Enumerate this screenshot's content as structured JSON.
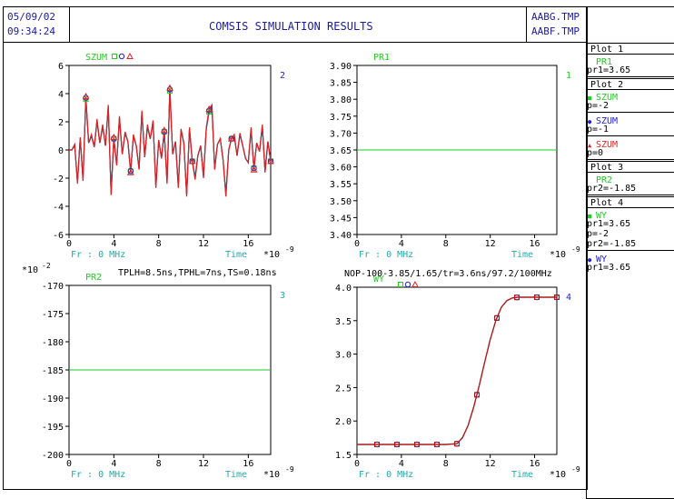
{
  "header": {
    "date": "05/09/02",
    "time": "09:34:24",
    "title": "COMSIS SIMULATION RESULTS",
    "file1": "AABG.TMP",
    "file2": "AABF.TMP"
  },
  "colors": {
    "green": "#22cc22",
    "blue": "#2222cc",
    "red": "#dd2222",
    "cyan": "#22aaaa",
    "maroon": "#aa1a1a",
    "frame": "#000000"
  },
  "legend_panel": [
    {
      "kind": "header",
      "text": "Plot  1"
    },
    {
      "kind": "name",
      "text": "PR1",
      "color": "#22cc22",
      "marker": ""
    },
    {
      "kind": "param",
      "text": "pr1=3.65"
    },
    {
      "kind": "header",
      "text": "Plot  2"
    },
    {
      "kind": "name",
      "text": "SZUM",
      "color": "#22cc22",
      "marker": "square"
    },
    {
      "kind": "param",
      "text": "p=-2"
    },
    {
      "kind": "name",
      "text": "SZUM",
      "color": "#2222cc",
      "marker": "circle"
    },
    {
      "kind": "param",
      "text": "p=-1"
    },
    {
      "kind": "name",
      "text": "SZUM",
      "color": "#dd2222",
      "marker": "triangle"
    },
    {
      "kind": "param",
      "text": "p=0"
    },
    {
      "kind": "header",
      "text": "Plot  3"
    },
    {
      "kind": "name",
      "text": "PR2",
      "color": "#22cc22",
      "marker": ""
    },
    {
      "kind": "param",
      "text": "pr2=-1.85"
    },
    {
      "kind": "header",
      "text": "Plot  4"
    },
    {
      "kind": "name",
      "text": "WY",
      "color": "#22cc22",
      "marker": "square"
    },
    {
      "kind": "param",
      "text": "pr1=3.65"
    },
    {
      "kind": "param",
      "text": "p=-2"
    },
    {
      "kind": "param",
      "text": "pr2=-1.85"
    },
    {
      "kind": "name",
      "text": "WY",
      "color": "#2222cc",
      "marker": "circle"
    },
    {
      "kind": "param",
      "text": "pr1=3.65"
    }
  ],
  "chart_data": [
    {
      "id": "plot2",
      "type": "line",
      "number": "2",
      "series_label": "SZUM",
      "xlabel_left": "Fr : 0 MHz",
      "xlabel_right": "Time",
      "x_multiplier": "*10-9",
      "xlim": [
        0,
        18
      ],
      "ylim": [
        -6,
        6
      ],
      "xticks": [
        "0",
        "4",
        "8",
        "12",
        "16"
      ],
      "yticks": [
        "6",
        "4",
        "2",
        "0",
        "-2",
        "-4",
        "-6"
      ],
      "x": [
        0,
        0.25,
        0.5,
        0.75,
        1,
        1.25,
        1.5,
        1.75,
        2,
        2.25,
        2.5,
        2.75,
        3,
        3.25,
        3.5,
        3.75,
        4,
        4.25,
        4.5,
        4.75,
        5,
        5.25,
        5.5,
        5.75,
        6,
        6.25,
        6.5,
        6.75,
        7,
        7.25,
        7.5,
        7.75,
        8,
        8.25,
        8.5,
        8.75,
        9,
        9.25,
        9.5,
        9.75,
        10,
        10.25,
        10.5,
        10.75,
        11,
        11.25,
        11.5,
        11.75,
        12,
        12.25,
        12.5,
        12.75,
        13,
        13.25,
        13.5,
        13.75,
        14,
        14.25,
        14.5,
        14.75,
        15,
        15.25,
        15.5,
        15.75,
        16,
        16.25,
        16.5,
        16.75,
        17,
        17.25,
        17.5,
        17.75,
        18
      ],
      "series": [
        {
          "name": "p=-2",
          "color": "#22cc22",
          "marker": "square",
          "values": [
            0,
            0,
            0.3,
            -2.2,
            0.8,
            -2,
            3.6,
            0.5,
            1,
            0.2,
            2,
            0.5,
            1.6,
            0.3,
            3,
            -3,
            0.8,
            -1,
            2.2,
            -0.3,
            1.2,
            0.6,
            -1.5,
            1,
            0.3,
            -1.3,
            2.6,
            -0.5,
            1.6,
            0.8,
            1.9,
            -2.5,
            0.7,
            -0.6,
            1.3,
            -2.2,
            4.2,
            -0.3,
            0.6,
            -2.5,
            1.3,
            0.5,
            -3.1,
            1.5,
            -0.8,
            -1.9,
            -0.4,
            0.3,
            -1.8,
            1.5,
            2.7,
            3,
            -1.3,
            0.4,
            0.8,
            -0.7,
            -3.1,
            0,
            0.8,
            1,
            -0.4,
            1.1,
            0.3,
            -0.6,
            -0.9,
            1.4,
            -1.3,
            0.5,
            -0.1,
            1.6,
            -1.5,
            0.6,
            -0.8
          ]
        },
        {
          "name": "p=-1",
          "color": "#2222cc",
          "marker": "circle",
          "values": [
            0,
            0,
            0.35,
            -2.3,
            0.8,
            -2.1,
            3.7,
            0.5,
            1,
            0.2,
            2.1,
            0.5,
            1.7,
            0.3,
            3.1,
            -3.1,
            0.8,
            -1,
            2.3,
            -0.3,
            1.2,
            0.6,
            -1.5,
            1,
            0.3,
            -1.3,
            2.7,
            -0.5,
            1.7,
            0.8,
            2,
            -2.6,
            0.7,
            -0.6,
            1.3,
            -2.3,
            4.3,
            -0.3,
            0.6,
            -2.6,
            1.4,
            0.5,
            -3.2,
            1.5,
            -0.8,
            -2,
            -0.4,
            0.3,
            -1.9,
            1.5,
            2.8,
            3.1,
            -1.3,
            0.4,
            0.8,
            -0.7,
            -3.2,
            0,
            0.8,
            1,
            -0.4,
            1.1,
            0.3,
            -0.6,
            -0.9,
            1.5,
            -1.3,
            0.5,
            -0.1,
            1.7,
            -1.5,
            0.6,
            -0.8
          ]
        },
        {
          "name": "p=0",
          "color": "#dd2222",
          "marker": "triangle",
          "values": [
            0,
            0,
            0.4,
            -2.4,
            0.9,
            -2.2,
            3.8,
            0.5,
            1.1,
            0.2,
            2.2,
            0.5,
            1.8,
            0.3,
            3.2,
            -3.2,
            0.9,
            -1.1,
            2.4,
            -0.3,
            1.3,
            0.6,
            -1.6,
            1.1,
            0.3,
            -1.4,
            2.8,
            -0.5,
            1.8,
            0.8,
            2.1,
            -2.7,
            0.7,
            -0.6,
            1.4,
            -2.4,
            4.4,
            -0.3,
            0.6,
            -2.7,
            1.5,
            0.5,
            -3.3,
            1.6,
            -0.8,
            -2.1,
            -0.4,
            0.3,
            -2,
            1.6,
            2.9,
            3.2,
            -1.4,
            0.4,
            0.8,
            -0.7,
            -3.3,
            0,
            0.8,
            1.1,
            -0.4,
            1.2,
            0.3,
            -0.6,
            -0.9,
            1.6,
            -1.4,
            0.5,
            -0.1,
            1.8,
            -1.6,
            0.6,
            -0.8
          ]
        }
      ],
      "marker_x": [
        1.5,
        4,
        5.5,
        8.5,
        9,
        11,
        12.5,
        14.5,
        16.5,
        18
      ]
    },
    {
      "id": "plot1",
      "type": "line",
      "number": "1",
      "series_label": "PR1",
      "xlabel_left": "Fr : 0 MHz",
      "xlabel_right": "Time",
      "x_multiplier": "*10-9",
      "xlim": [
        0,
        18
      ],
      "ylim": [
        3.4,
        3.9
      ],
      "xticks": [
        "0",
        "4",
        "8",
        "12",
        "16"
      ],
      "yticks": [
        "3.90",
        "3.85",
        "3.80",
        "3.75",
        "3.70",
        "3.65",
        "3.60",
        "3.55",
        "3.50",
        "3.45",
        "3.40"
      ],
      "series": [
        {
          "name": "PR1",
          "color": "#22cc22",
          "x": [
            0,
            18
          ],
          "values": [
            3.65,
            3.65
          ]
        }
      ]
    },
    {
      "id": "plot3",
      "type": "line",
      "number": "3",
      "series_label": "PR2",
      "y_multiplier": "*10-2",
      "annotation": "TPLH=8.5ns,TPHL=7ns,TS=0.18ns",
      "xlabel_left": "Fr : 0 MHz",
      "xlabel_right": "Time",
      "x_multiplier": "*10-9",
      "xlim": [
        0,
        18
      ],
      "ylim": [
        -200,
        -170
      ],
      "xticks": [
        "0",
        "4",
        "8",
        "12",
        "16"
      ],
      "yticks": [
        "-170",
        "-175",
        "-180",
        "-185",
        "-190",
        "-195",
        "-200"
      ],
      "series": [
        {
          "name": "PR2",
          "color": "#22cc22",
          "x": [
            0,
            18
          ],
          "values": [
            -185,
            -185
          ]
        }
      ]
    },
    {
      "id": "plot4",
      "type": "line",
      "number": "4",
      "series_label": "WY",
      "annotation": "NOP-100-3.85/1.65/tr=3.6ns/97.2/100MHz",
      "xlabel_left": "Fr : 0 MHz",
      "xlabel_right": "Time",
      "x_multiplier": "*10-9",
      "xlim": [
        0,
        18
      ],
      "ylim": [
        1.5,
        4.0
      ],
      "xticks": [
        "0",
        "4",
        "8",
        "12",
        "16"
      ],
      "yticks": [
        "4.0",
        "3.5",
        "3.0",
        "2.5",
        "2.0",
        "1.5"
      ],
      "x": [
        0,
        1,
        2,
        3,
        4,
        5,
        6,
        7,
        8,
        9,
        9.5,
        10,
        10.5,
        11,
        11.5,
        12,
        12.5,
        13,
        13.5,
        14,
        14.5,
        15,
        16,
        17,
        18
      ],
      "series": [
        {
          "name": "p=-2",
          "color": "#aa1a1a",
          "values": [
            1.65,
            1.65,
            1.65,
            1.65,
            1.65,
            1.65,
            1.65,
            1.65,
            1.65,
            1.66,
            1.75,
            1.93,
            2.2,
            2.52,
            2.88,
            3.22,
            3.5,
            3.7,
            3.8,
            3.84,
            3.85,
            3.85,
            3.85,
            3.85,
            3.85
          ]
        }
      ],
      "marker_x": [
        1.8,
        3.6,
        5.4,
        7.2,
        9,
        10.8,
        12.6,
        14.4,
        16.2,
        18
      ]
    }
  ]
}
